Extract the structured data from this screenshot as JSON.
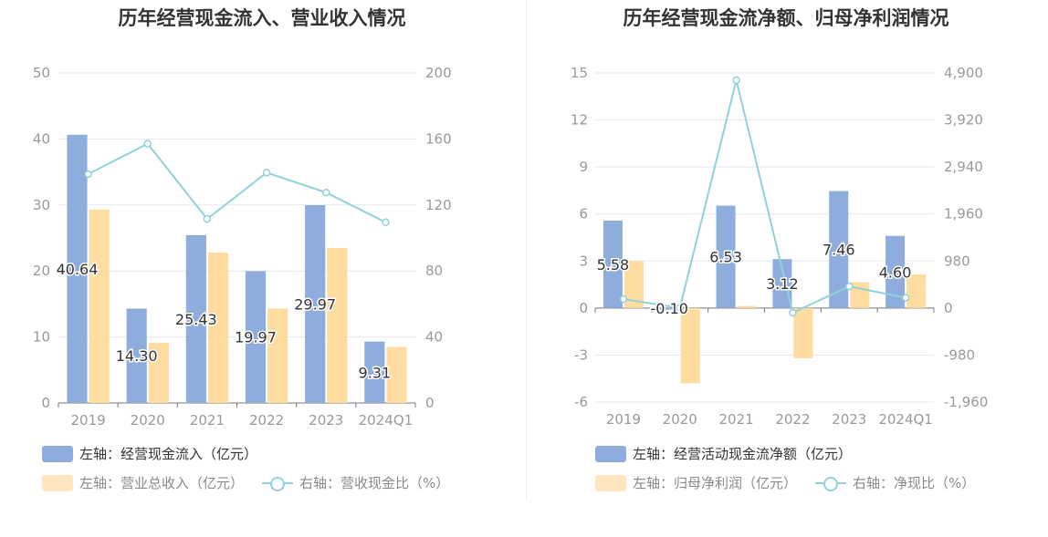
{
  "colors": {
    "bar1": "#8eaddc",
    "bar2": "#ffdca0",
    "line": "#8fd3d8",
    "grid": "#e4e7ef",
    "axis": "#999999",
    "label": "#333333"
  },
  "charts": [
    {
      "title": "历年经营现金流入、营业收入情况",
      "legend": {
        "bar1": "左轴：经营现金流入（亿元）",
        "bar2": "左轴：营业总收入（亿元）",
        "line": "右轴：营收现金比（%）"
      }
    },
    {
      "title": "历年经营现金流净额、归母净利润情况",
      "legend": {
        "bar1": "左轴：经营活动现金流净额（亿元）",
        "bar2": "左轴：归母净利润（亿元）",
        "line": "右轴：净现比（%）"
      }
    }
  ],
  "chart_data": [
    {
      "type": "bar",
      "title": "历年经营现金流入、营业收入情况",
      "categories": [
        "2019",
        "2020",
        "2021",
        "2022",
        "2023",
        "2024Q1"
      ],
      "left_axis": {
        "min": 0,
        "max": 50,
        "ticks": [
          "0",
          "10",
          "20",
          "30",
          "40",
          "50"
        ]
      },
      "right_axis": {
        "min": 0,
        "max": 200,
        "ticks": [
          "0",
          "40",
          "80",
          "120",
          "160",
          "200"
        ]
      },
      "series": [
        {
          "name": "左轴：经营现金流入（亿元）",
          "type": "bar",
          "axis": "left",
          "values": [
            40.64,
            14.3,
            25.43,
            19.97,
            29.97,
            9.31
          ],
          "labels": [
            "40.64",
            "14.30",
            "25.43",
            "19.97",
            "29.97",
            "9.31"
          ]
        },
        {
          "name": "左轴：营业总收入（亿元）",
          "type": "bar",
          "axis": "left",
          "values": [
            29.3,
            9.1,
            22.8,
            14.3,
            23.5,
            8.5
          ]
        },
        {
          "name": "右轴：营收现金比（%）",
          "type": "line",
          "axis": "right",
          "values": [
            138.7,
            157.1,
            111.5,
            139.6,
            127.5,
            109.5
          ]
        }
      ],
      "grid": true,
      "legend_position": "bottom-left"
    },
    {
      "type": "bar",
      "title": "历年经营现金流净额、归母净利润情况",
      "categories": [
        "2019",
        "2020",
        "2021",
        "2022",
        "2023",
        "2024Q1"
      ],
      "left_axis": {
        "min": -6,
        "max": 15,
        "ticks": [
          "-6",
          "-3",
          "0",
          "3",
          "6",
          "9",
          "12",
          "15"
        ]
      },
      "right_axis": {
        "min": -1960,
        "max": 4900,
        "ticks": [
          "-1,960",
          "-980",
          "0",
          "980",
          "1,960",
          "2,940",
          "3,920",
          "4,900"
        ]
      },
      "series": [
        {
          "name": "左轴：经营活动现金流净额（亿元）",
          "type": "bar",
          "axis": "left",
          "values": [
            5.58,
            -0.1,
            6.53,
            3.12,
            7.46,
            4.6
          ],
          "labels": [
            "5.58",
            "-0.10",
            "6.53",
            "3.12",
            "7.46",
            "4.60"
          ]
        },
        {
          "name": "左轴：归母净利润（亿元）",
          "type": "bar",
          "axis": "left",
          "values": [
            3.0,
            -4.8,
            0.13,
            -3.2,
            1.65,
            2.15
          ]
        },
        {
          "name": "右轴：净现比（%）",
          "type": "line",
          "axis": "right",
          "values": [
            186,
            2,
            4750,
            -97,
            452,
            214
          ]
        }
      ],
      "grid": true,
      "legend_position": "bottom-left"
    }
  ]
}
